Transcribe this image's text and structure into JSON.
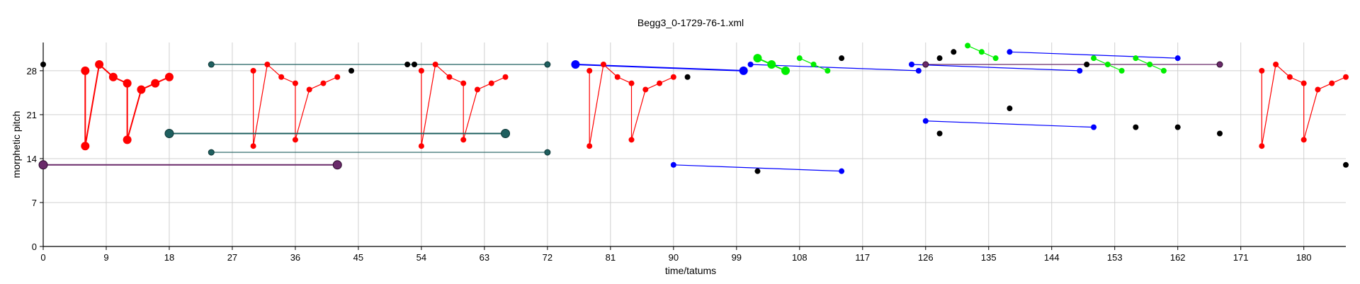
{
  "chart_data": {
    "type": "scatter",
    "title": "Begg3_0-1729-76-1.xml",
    "xlabel": "time/tatums",
    "ylabel": "morphetic pitch",
    "xlim": [
      0,
      186
    ],
    "ylim": [
      0,
      32.5
    ],
    "x_ticks": [
      0,
      9,
      18,
      27,
      36,
      45,
      54,
      63,
      72,
      81,
      90,
      99,
      108,
      117,
      126,
      135,
      144,
      153,
      162,
      171,
      180
    ],
    "y_ticks": [
      0,
      7,
      14,
      21,
      28
    ],
    "grid": true,
    "colors": {
      "red": "#ff0000",
      "blue": "#0000ff",
      "green": "#00ee00",
      "teal": "#1f5f5f",
      "purple": "#6a2a6a",
      "black": "#000000",
      "grid": "#d0d0d0"
    },
    "series": [
      {
        "color": "red",
        "size": "large",
        "x": [
          6,
          6,
          8,
          10,
          12,
          12,
          14,
          16,
          18
        ],
        "y": [
          28,
          16,
          29,
          27,
          26,
          17,
          25,
          26,
          27
        ]
      },
      {
        "color": "red",
        "size": "small",
        "x": [
          30,
          30,
          32,
          34,
          36,
          36,
          38,
          40,
          42
        ],
        "y": [
          28,
          16,
          29,
          27,
          26,
          17,
          25,
          26,
          27
        ]
      },
      {
        "color": "red",
        "size": "small",
        "x": [
          54,
          54,
          56,
          58,
          60,
          60,
          62,
          64,
          66
        ],
        "y": [
          28,
          16,
          29,
          27,
          26,
          17,
          25,
          26,
          27
        ]
      },
      {
        "color": "red",
        "size": "small",
        "x": [
          78,
          78,
          80,
          82,
          84,
          84,
          86,
          88,
          90
        ],
        "y": [
          28,
          16,
          29,
          27,
          26,
          17,
          25,
          26,
          27
        ]
      },
      {
        "color": "red",
        "size": "small",
        "x": [
          174,
          174,
          176,
          178,
          180,
          180,
          182,
          184,
          186
        ],
        "y": [
          28,
          16,
          29,
          27,
          26,
          17,
          25,
          26,
          27
        ]
      },
      {
        "color": "teal",
        "size": "large",
        "x": [
          18,
          66
        ],
        "y": [
          18,
          18
        ]
      },
      {
        "color": "teal",
        "size": "small",
        "x": [
          24,
          72
        ],
        "y": [
          15,
          15
        ]
      },
      {
        "color": "teal",
        "size": "small",
        "x": [
          24,
          72
        ],
        "y": [
          29,
          29
        ]
      },
      {
        "color": "purple",
        "size": "large",
        "x": [
          0,
          42
        ],
        "y": [
          13,
          13
        ]
      },
      {
        "color": "purple",
        "size": "small",
        "x": [
          126,
          168
        ],
        "y": [
          29,
          29
        ]
      },
      {
        "color": "blue",
        "size": "large",
        "x": [
          76,
          100
        ],
        "y": [
          29,
          28
        ]
      },
      {
        "color": "blue",
        "size": "small",
        "x": [
          101,
          125
        ],
        "y": [
          29,
          28
        ]
      },
      {
        "color": "blue",
        "size": "small",
        "x": [
          124,
          148
        ],
        "y": [
          29,
          28
        ]
      },
      {
        "color": "blue",
        "size": "small",
        "x": [
          138,
          162
        ],
        "y": [
          31,
          30
        ]
      },
      {
        "color": "blue",
        "size": "small",
        "x": [
          126,
          150
        ],
        "y": [
          20,
          19
        ]
      },
      {
        "color": "blue",
        "size": "small",
        "x": [
          90,
          114
        ],
        "y": [
          13,
          12
        ]
      },
      {
        "color": "green",
        "size": "large",
        "x": [
          102,
          104,
          106
        ],
        "y": [
          30,
          29,
          28
        ]
      },
      {
        "color": "green",
        "size": "small",
        "x": [
          108,
          110,
          112
        ],
        "y": [
          30,
          29,
          28
        ]
      },
      {
        "color": "green",
        "size": "small",
        "x": [
          132,
          134,
          136
        ],
        "y": [
          32,
          31,
          30
        ]
      },
      {
        "color": "green",
        "size": "small",
        "x": [
          150,
          152,
          154
        ],
        "y": [
          30,
          29,
          28
        ]
      },
      {
        "color": "green",
        "size": "small",
        "x": [
          156,
          158,
          160
        ],
        "y": [
          30,
          29,
          28
        ]
      },
      {
        "color": "black",
        "size": "small",
        "lines": false,
        "x": [
          0,
          44,
          52,
          53,
          92,
          102,
          114,
          128,
          130,
          128,
          138,
          149,
          156,
          162,
          168,
          186
        ],
        "y": [
          29,
          28,
          29,
          29,
          27,
          12,
          30,
          30,
          31,
          18,
          22,
          29,
          19,
          19,
          18,
          13
        ]
      }
    ]
  }
}
